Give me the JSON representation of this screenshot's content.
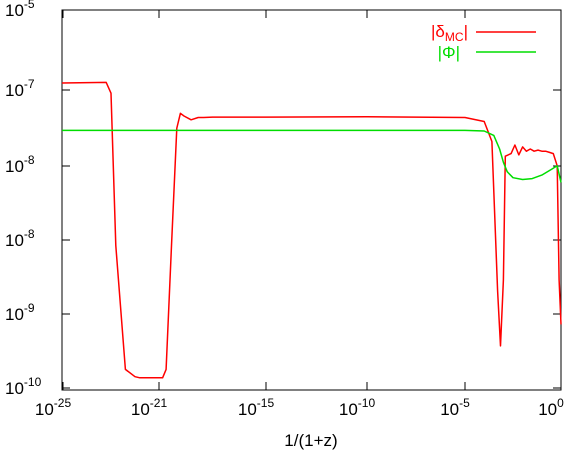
{
  "chart_data": {
    "type": "line",
    "title": "",
    "xlabel": "1/(1+z)",
    "ylabel": "",
    "x_scale": "log",
    "x_ticks": [
      {
        "base": "10",
        "exp": "-25"
      },
      {
        "base": "10",
        "exp": "-21"
      },
      {
        "base": "10",
        "exp": "-15"
      },
      {
        "base": "10",
        "exp": "-10"
      },
      {
        "base": "10",
        "exp": "-5"
      },
      {
        "base": "10",
        "exp": "0"
      }
    ],
    "y_ticks": [
      {
        "base": "10",
        "exp": "-5"
      },
      {
        "base": "10",
        "exp": "-7"
      },
      {
        "base": "10",
        "exp": "-8"
      },
      {
        "base": "10",
        "exp": "-8"
      },
      {
        "base": "10",
        "exp": "-9"
      },
      {
        "base": "10",
        "exp": "-10"
      }
    ],
    "grid": false,
    "legend_position": "top-right",
    "series": [
      {
        "name_main": "|δ",
        "name_sub": "MC",
        "name_tail": "|",
        "color": "#ff0000",
        "x": [
          -26,
          -23.2,
          -23.0,
          -22.8,
          -22.4,
          -22.0,
          -21.8,
          -21.2,
          -20.8,
          -20.6,
          -20.3,
          -20.0,
          -19.8,
          -19.6,
          -19.2,
          -18.8,
          -18.5,
          -18.0,
          -17.0,
          -15.0,
          -10.0,
          -5.0,
          -4.0,
          -3.6,
          -3.3,
          -3.15,
          -3.0,
          -2.9,
          -2.6,
          -2.4,
          -2.2,
          -2.0,
          -1.8,
          -1.6,
          -1.4,
          -1.2,
          -1.0,
          -0.8,
          -0.6,
          -0.4,
          -0.2,
          -0.1,
          0.0
        ],
        "y": [
          1.5e-07,
          1.55e-07,
          9e-08,
          2e-09,
          1.5e-10,
          1.28e-10,
          1.25e-10,
          1.25e-10,
          1.25e-10,
          1.5e-10,
          2e-09,
          2.8e-08,
          4.6e-08,
          4.2e-08,
          3.7e-08,
          4e-08,
          4e-08,
          4.05e-08,
          4.05e-08,
          4.05e-08,
          4.1e-08,
          4e-08,
          3.5e-08,
          1.8e-08,
          8e-10,
          2.5e-10,
          1e-09,
          1.1e-08,
          1.2e-08,
          1.6e-08,
          1.15e-08,
          1.5e-08,
          1.3e-08,
          1.4e-08,
          1.3e-08,
          1.35e-08,
          1.3e-08,
          1.3e-08,
          1.25e-08,
          1.2e-08,
          8e-09,
          1e-09,
          4e-10
        ]
      },
      {
        "name_main": "|Φ|",
        "name_sub": "",
        "name_tail": "",
        "color": "#00dd00",
        "x": [
          -26,
          -20.0,
          -10.0,
          -5.0,
          -4.0,
          -3.5,
          -3.2,
          -3.0,
          -2.8,
          -2.5,
          -2.0,
          -1.5,
          -1.0,
          -0.5,
          -0.2,
          0.0
        ],
        "y": [
          2.6e-08,
          2.6e-08,
          2.6e-08,
          2.6e-08,
          2.55e-08,
          2.2e-08,
          1.4e-08,
          9e-09,
          7.2e-09,
          6.5e-09,
          6.3e-09,
          6.4e-09,
          6.8e-09,
          7.5e-09,
          8e-09,
          6e-09
        ]
      }
    ]
  }
}
